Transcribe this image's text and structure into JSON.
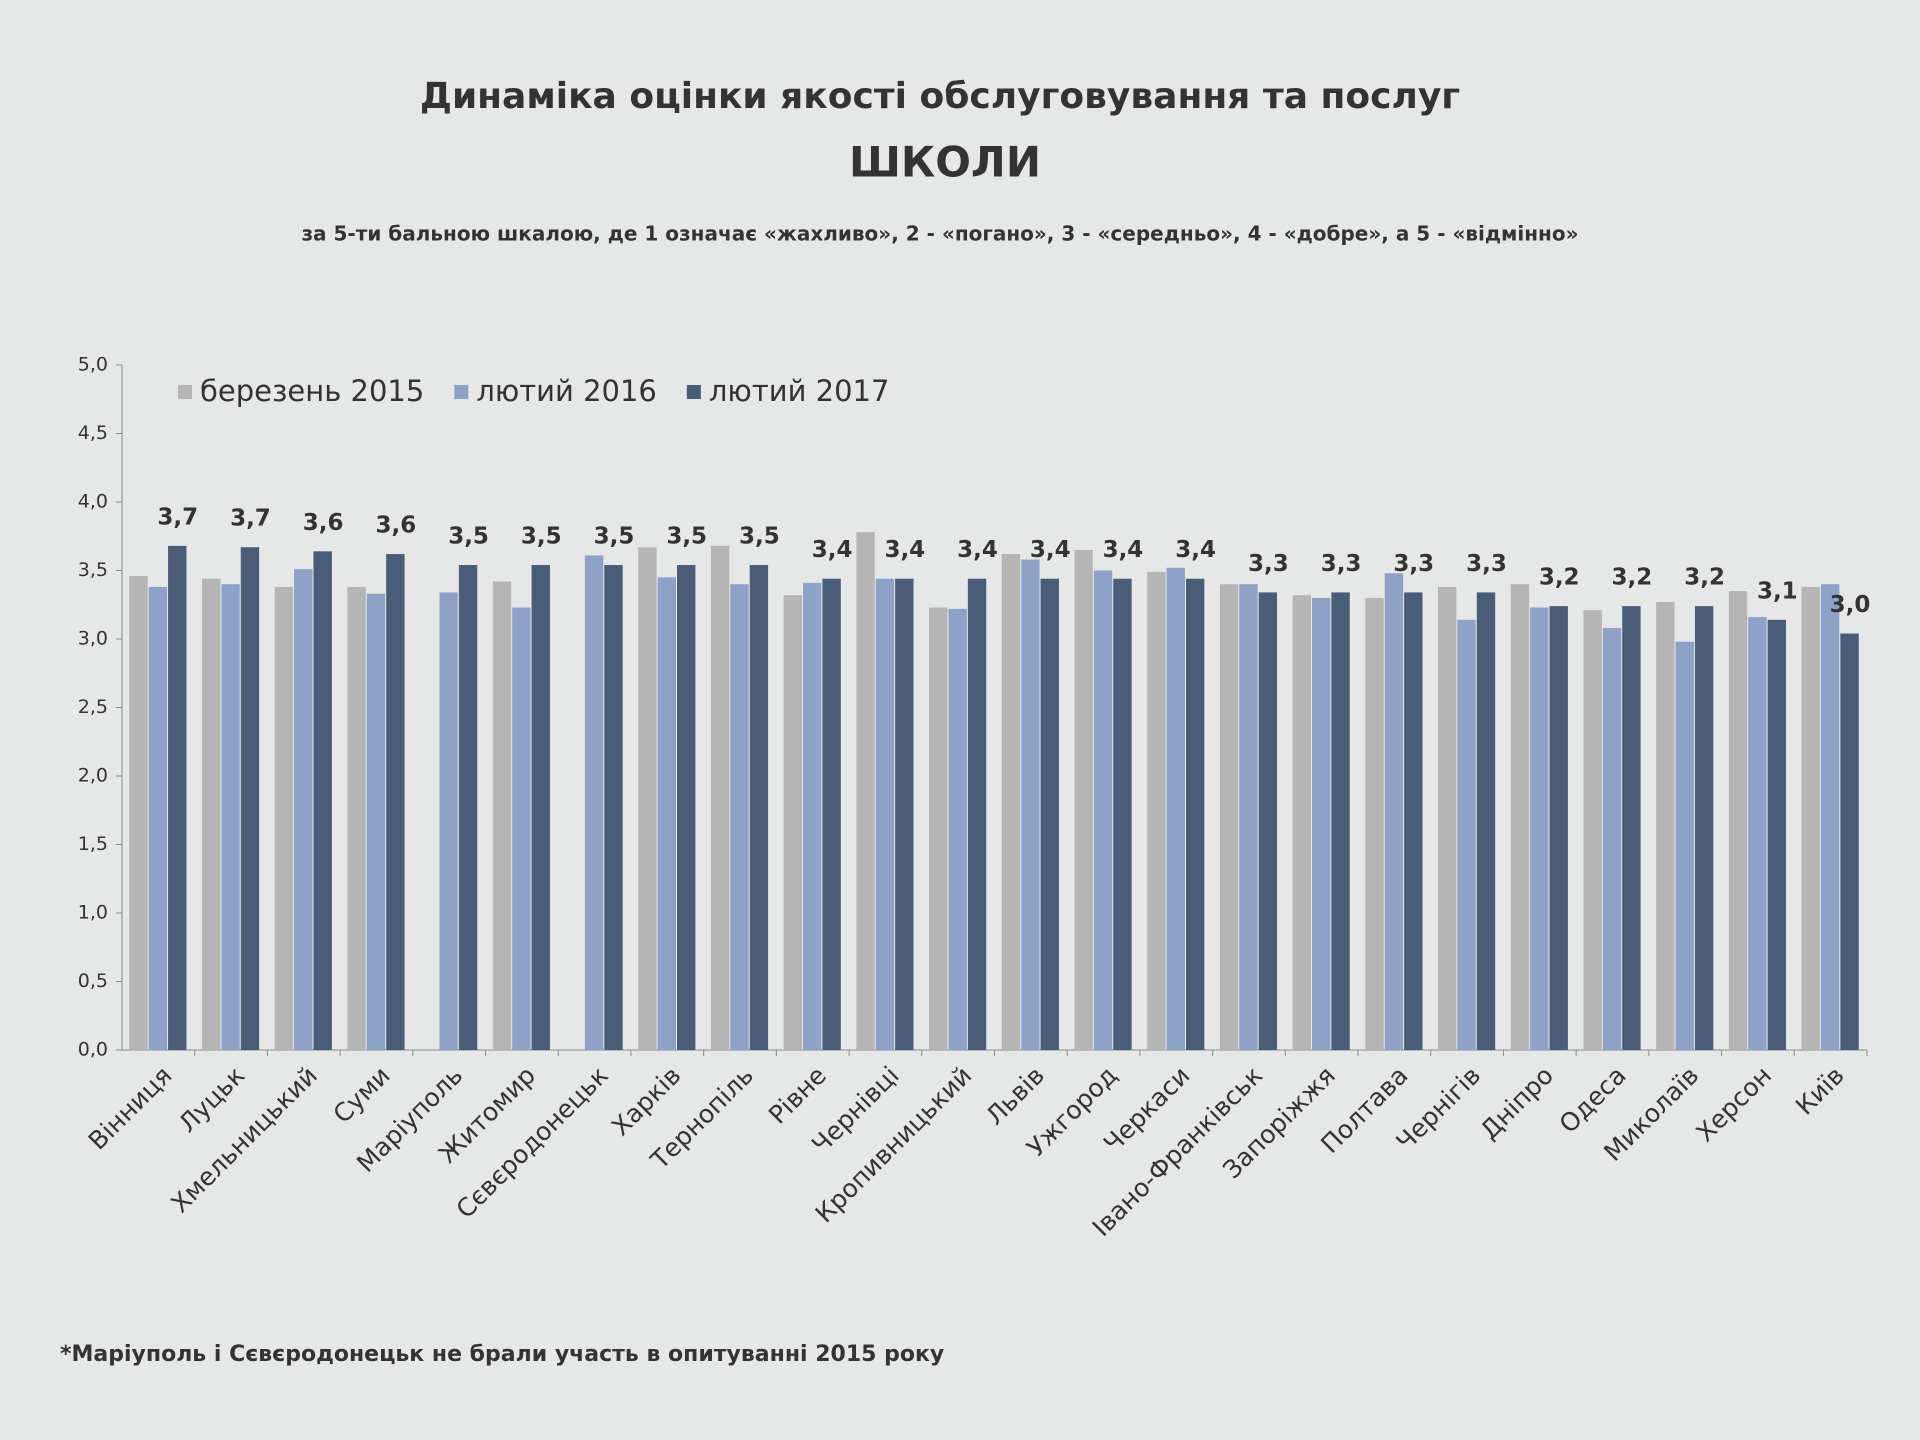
{
  "chart_data": {
    "type": "bar",
    "title": "Динаміка оцінки якості обслуговування та послуг",
    "subtitle": "ШКОЛИ",
    "scale_note": "за 5-ти бальною шкалою, де 1 означає «жахливо», 2 - «погано», 3 - «середньо», 4 - «добре», а 5 - «відмінно»",
    "footnote": "*Маріуполь і Сєвєродонецьк не брали участь в опитуванні 2015 року",
    "categories": [
      "Вінниця",
      "Луцьк",
      "Хмельницький",
      "Суми",
      "Маріуполь",
      "Житомир",
      "Сєвєродонецьк",
      "Харків",
      "Тернопіль",
      "Рівне",
      "Чернівці",
      "Кропивницький",
      "Львів",
      "Ужгород",
      "Черкаси",
      "Івано-Франківськ",
      "Запоріжжя",
      "Полтава",
      "Чернігів",
      "Дніпро",
      "Одеса",
      "Миколаїв",
      "Херсон",
      "Київ"
    ],
    "series": [
      {
        "name": "березень 2015",
        "color": "#b5b5b5",
        "values": [
          3.46,
          3.44,
          3.38,
          3.38,
          null,
          3.42,
          null,
          3.67,
          3.68,
          3.32,
          3.78,
          3.23,
          3.62,
          3.65,
          3.49,
          3.4,
          3.32,
          3.3,
          3.38,
          3.4,
          3.21,
          3.27,
          3.35,
          3.38
        ]
      },
      {
        "name": "лютий 2016",
        "color": "#8ea2c8",
        "values": [
          3.38,
          3.4,
          3.51,
          3.33,
          3.34,
          3.23,
          3.61,
          3.45,
          3.4,
          3.41,
          3.44,
          3.22,
          3.58,
          3.5,
          3.52,
          3.4,
          3.3,
          3.48,
          3.14,
          3.23,
          3.08,
          2.98,
          3.16,
          3.4
        ]
      },
      {
        "name": "лютий 2017",
        "color": "#4a5d78",
        "values": [
          3.68,
          3.67,
          3.64,
          3.62,
          3.54,
          3.54,
          3.54,
          3.54,
          3.54,
          3.44,
          3.44,
          3.44,
          3.44,
          3.44,
          3.44,
          3.34,
          3.34,
          3.34,
          3.34,
          3.24,
          3.24,
          3.24,
          3.14,
          3.04
        ],
        "value_labels": [
          "3,7",
          "3,7",
          "3,6",
          "3,6",
          "3,5",
          "3,5",
          "3,5",
          "3,5",
          "3,5",
          "3,4",
          "3,4",
          "3,4",
          "3,4",
          "3,4",
          "3,4",
          "3,3",
          "3,3",
          "3,3",
          "3,3",
          "3,2",
          "3,2",
          "3,2",
          "3,1",
          "3,0"
        ]
      }
    ],
    "ylim": [
      0,
      5
    ],
    "yticks": [
      {
        "value": 0,
        "label": "0,0"
      },
      {
        "value": 0.5,
        "label": "0,5"
      },
      {
        "value": 1,
        "label": "1,0"
      },
      {
        "value": 1.5,
        "label": "1,5"
      },
      {
        "value": 2,
        "label": "2,0"
      },
      {
        "value": 2.5,
        "label": "2,5"
      },
      {
        "value": 3,
        "label": "3,0"
      },
      {
        "value": 3.5,
        "label": "3,5"
      },
      {
        "value": 4,
        "label": "4,0"
      },
      {
        "value": 4.5,
        "label": "4,5"
      },
      {
        "value": 5,
        "label": "5,0"
      }
    ],
    "legend": "top-left"
  }
}
